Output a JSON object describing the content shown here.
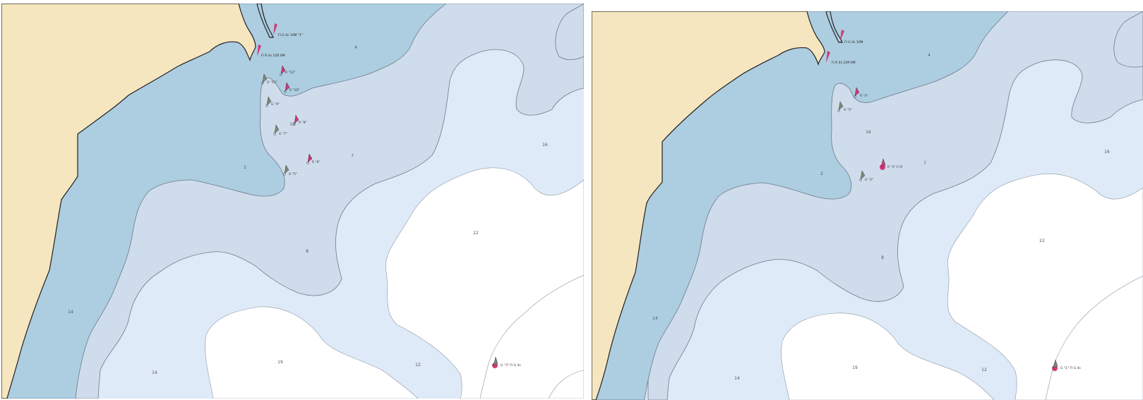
{
  "colors": {
    "land": "#f5e6bf",
    "shallow": "#adcde1",
    "medium": "#cfdcec",
    "light": "#deeaf7",
    "deep": "#ffffff",
    "red_mark": "#d03a78",
    "green_mark": "#7c8a78",
    "coastline": "#222222",
    "contour": "#6d7b88"
  },
  "panels": [
    {
      "id": "left",
      "lights": [
        "Fl G 4s 10M \"1\"",
        "Fl R 4s 22ft 6M"
      ],
      "marks": [
        {
          "icon": "red-nun-icon",
          "label": "R \"12\""
        },
        {
          "icon": "green-can-icon",
          "label": "G \"11\""
        },
        {
          "icon": "red-nun-icon",
          "label": "R \"10\""
        },
        {
          "icon": "green-can-icon",
          "label": "G \"9\""
        },
        {
          "icon": "red-nun-icon",
          "label": "R \"8\""
        },
        {
          "icon": "green-can-icon",
          "label": "G \"7\""
        },
        {
          "icon": "red-nun-icon",
          "label": "R \"6\""
        },
        {
          "icon": "green-can-icon",
          "label": "G \"5\""
        },
        {
          "icon": "lighted-buoy-icon",
          "label": "G \"3\" Fl G 4s"
        }
      ],
      "soundings": [
        "4",
        "2",
        "7",
        "16",
        "22",
        "8",
        "14",
        "14",
        "19",
        "12",
        "10"
      ]
    },
    {
      "id": "right",
      "lights": [
        "Fl G 4s 10M",
        "Fl R 4s 22ft 6M"
      ],
      "marks": [
        {
          "icon": "red-nun-icon",
          "label": "R \"4\""
        },
        {
          "icon": "green-can-icon",
          "label": "G \"5\""
        },
        {
          "icon": "green-can-icon",
          "label": "G \"3\""
        },
        {
          "icon": "lighted-buoy-icon",
          "label": "R \"2\" Fl R"
        },
        {
          "icon": "lighted-buoy-icon",
          "label": "G \"1\" Fl G 4s"
        }
      ],
      "soundings": [
        "4",
        "2",
        "7",
        "16",
        "22",
        "8",
        "14",
        "14",
        "19",
        "12",
        "16"
      ]
    }
  ]
}
